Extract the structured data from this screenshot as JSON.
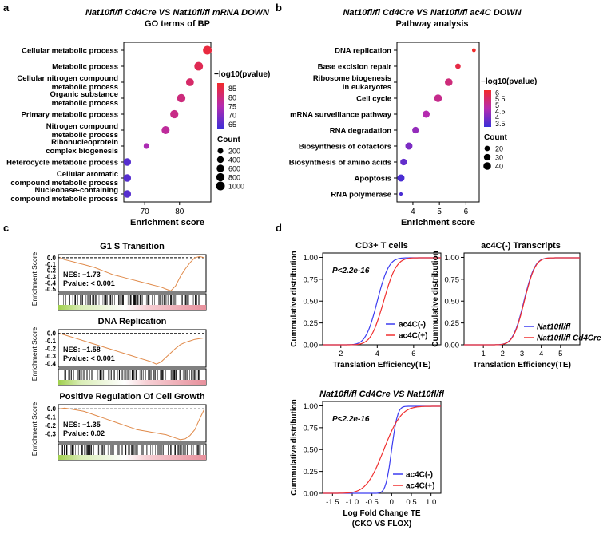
{
  "panels": {
    "a": {
      "letter": "a",
      "title_line1": "Nat10fl/fl Cd4Cre VS Nat10fl/fl mRNA DOWN",
      "title_line2": "GO terms of BP",
      "chart_data": {
        "type": "scatter",
        "title": "Nat10fl/fl Cd4Cre VS Nat10fl/fl mRNA DOWN - GO terms of BP",
        "xlabel": "Enrichment score",
        "xlim": [
          64,
          89
        ],
        "xticks": [
          70,
          80
        ],
        "terms": [
          {
            "label": [
              "Cellular metabolic process"
            ],
            "x": 88.0,
            "count": 1000,
            "logp": 86
          },
          {
            "label": [
              "Metabolic process"
            ],
            "x": 85.5,
            "count": 950,
            "logp": 84
          },
          {
            "label": [
              "Cellular nitrogen compound",
              "metabolic process"
            ],
            "x": 83.0,
            "count": 700,
            "logp": 82
          },
          {
            "label": [
              "Organic substance",
              "metabolic process"
            ],
            "x": 80.5,
            "count": 850,
            "logp": 80
          },
          {
            "label": [
              "Primary metabolic process"
            ],
            "x": 78.5,
            "count": 800,
            "logp": 79
          },
          {
            "label": [
              "Nitrogen compound",
              "metabolic process"
            ],
            "x": 76.0,
            "count": 750,
            "logp": 77
          },
          {
            "label": [
              "Ribonucleoprotein",
              "complex biogenesis"
            ],
            "x": 70.5,
            "count": 200,
            "logp": 74
          },
          {
            "label": [
              "Heterocycle metabolic process"
            ],
            "x": 65.0,
            "count": 600,
            "logp": 65
          },
          {
            "label": [
              "Cellular aromatic",
              "compound metabolic process"
            ],
            "x": 65.0,
            "count": 600,
            "logp": 65
          },
          {
            "label": [
              "Nucleobase-containing",
              "compound metabolic process"
            ],
            "x": 65.0,
            "count": 600,
            "logp": 65
          }
        ],
        "color_legend": {
          "title": "−log10(pvalue)",
          "min": 62,
          "max": 88,
          "ticks": [
            85,
            80,
            75,
            70,
            65
          ]
        },
        "size_legend": {
          "title": "Count",
          "values": [
            200,
            400,
            600,
            800,
            1000
          ]
        }
      }
    },
    "b": {
      "letter": "b",
      "title_line1": "Nat10fl/fl Cd4Cre VS Nat10fl/fl ac4C DOWN",
      "title_line2": "Pathway analysis",
      "chart_data": {
        "type": "scatter",
        "title": "Nat10fl/fl Cd4Cre VS Nat10fl/fl ac4C DOWN - Pathway analysis",
        "xlabel": "Enrichment score",
        "xlim": [
          3.4,
          6.5
        ],
        "xticks": [
          4,
          5,
          6
        ],
        "terms": [
          {
            "label": [
              "DNA replication"
            ],
            "x": 6.3,
            "count": 10,
            "logp": 6.2
          },
          {
            "label": [
              "Base excision repair"
            ],
            "x": 5.7,
            "count": 20,
            "logp": 5.9
          },
          {
            "label": [
              "Ribosome biogenesis",
              "in eukaryotes"
            ],
            "x": 5.35,
            "count": 40,
            "logp": 5.3
          },
          {
            "label": [
              "Cell cycle"
            ],
            "x": 4.95,
            "count": 40,
            "logp": 5.1
          },
          {
            "label": [
              "mRNA surveillance pathway"
            ],
            "x": 4.5,
            "count": 35,
            "logp": 4.7
          },
          {
            "label": [
              "RNA degradation"
            ],
            "x": 4.1,
            "count": 30,
            "logp": 4.3
          },
          {
            "label": [
              "Biosynthesis of cofactors"
            ],
            "x": 3.85,
            "count": 35,
            "logp": 4.0
          },
          {
            "label": [
              "Biosynthesis of amino acids"
            ],
            "x": 3.65,
            "count": 30,
            "logp": 3.7
          },
          {
            "label": [
              "Apoptosis"
            ],
            "x": 3.55,
            "count": 35,
            "logp": 3.4
          },
          {
            "label": [
              "RNA polymerase"
            ],
            "x": 3.55,
            "count": 8,
            "logp": 3.4
          }
        ],
        "color_legend": {
          "title": "−log10(pvalue)",
          "min": 3.2,
          "max": 6.2,
          "ticks": [
            6.0,
            5.5,
            5.0,
            4.5,
            4.0,
            3.5
          ]
        },
        "size_legend": {
          "title": "Count",
          "values": [
            20,
            30,
            40
          ]
        }
      }
    },
    "c": {
      "letter": "c",
      "chart_data": [
        {
          "type": "line",
          "title": "G1 S Transition",
          "ylabel": "Enrichment Score",
          "ylim": [
            -0.55,
            0.05
          ],
          "yticks": [
            "0.0",
            "-0.1",
            "-0.2",
            "-0.3",
            "-0.4",
            "-0.5"
          ],
          "nes": "NES: −1.73",
          "pvalue": "Pvalue: < 0.001",
          "curve": [
            0,
            -0.03,
            -0.05,
            -0.07,
            -0.09,
            -0.11,
            -0.13,
            -0.15,
            -0.18,
            -0.21,
            -0.24,
            -0.27,
            -0.29,
            -0.31,
            -0.33,
            -0.35,
            -0.37,
            -0.39,
            -0.41,
            -0.43,
            -0.45,
            -0.47,
            -0.5,
            -0.53,
            -0.45,
            -0.3,
            -0.18,
            -0.08,
            0,
            0.02,
            0
          ]
        },
        {
          "type": "line",
          "title": "DNA Replication",
          "ylabel": "Enrichment Score",
          "ylim": [
            -0.45,
            0.05
          ],
          "yticks": [
            "0.0",
            "-0.1",
            "-0.2",
            "-0.3",
            "-0.4"
          ],
          "nes": "NES: −1.58",
          "pvalue": "Pvalue: < 0.001",
          "curve": [
            0,
            -0.02,
            -0.04,
            -0.06,
            -0.08,
            -0.1,
            -0.12,
            -0.14,
            -0.16,
            -0.18,
            -0.2,
            -0.22,
            -0.24,
            -0.26,
            -0.28,
            -0.3,
            -0.32,
            -0.34,
            -0.36,
            -0.38,
            -0.41,
            -0.38,
            -0.32,
            -0.26,
            -0.2,
            -0.15,
            -0.12,
            -0.1,
            -0.08,
            -0.07,
            -0.06
          ]
        },
        {
          "type": "line",
          "title": "Positive Regulation Of Cell Growth",
          "ylabel": "Enrichment Score",
          "ylim": [
            -0.4,
            0.05
          ],
          "yticks": [
            "0.0",
            "-0.1",
            "-0.2",
            "-0.3"
          ],
          "nes": "NES: −1.35",
          "pvalue": "Pvalue: 0.02",
          "curve": [
            0,
            0.01,
            0,
            -0.01,
            -0.02,
            -0.03,
            -0.05,
            -0.07,
            -0.09,
            -0.11,
            -0.13,
            -0.15,
            -0.17,
            -0.19,
            -0.21,
            -0.23,
            -0.25,
            -0.26,
            -0.27,
            -0.28,
            -0.29,
            -0.3,
            -0.31,
            -0.33,
            -0.35,
            -0.37,
            -0.36,
            -0.32,
            -0.25,
            -0.12,
            0
          ]
        }
      ]
    },
    "d": {
      "letter": "d",
      "chart_data": [
        {
          "type": "line",
          "title": "CD3+ T cells",
          "annotation": "P<2.2e-16",
          "xlabel": "Translation Efficiency(TE)",
          "ylabel": "Cummulative distribution",
          "xlim": [
            1,
            7.5
          ],
          "xticks": [
            2,
            4,
            6
          ],
          "ylim": [
            0,
            1.05
          ],
          "yticks": [
            "0.00",
            "0.25",
            "0.50",
            "0.75",
            "1.00"
          ],
          "series": [
            {
              "name": "ac4C(-)",
              "color": "#3c3cf0",
              "mu": 4.0,
              "sigma": 0.5
            },
            {
              "name": "ac4C(+)",
              "color": "#f03030",
              "mu": 4.35,
              "sigma": 0.55
            }
          ]
        },
        {
          "type": "line",
          "title": "ac4C(-) Transcripts",
          "xlabel": "Translation Efficiency(TE)",
          "ylabel": "Cummulative distribution",
          "xlim": [
            0,
            6
          ],
          "xticks": [
            1,
            2,
            3,
            4,
            5
          ],
          "ylim": [
            0,
            1.05
          ],
          "yticks": [
            "0.00",
            "0.25",
            "0.50",
            "0.75",
            "1.00"
          ],
          "series": [
            {
              "name": "Nat10fl/fl",
              "color": "#3c3cf0",
              "mu": 3.1,
              "sigma": 0.45
            },
            {
              "name": "Nat10fl/fl Cd4Cre",
              "color": "#f03030",
              "mu": 3.12,
              "sigma": 0.45
            }
          ]
        },
        {
          "type": "line",
          "title": "Nat10fl/fl Cd4Cre VS Nat10fl/fl",
          "annotation": "P<2.2e-16",
          "xlabel": "Log Fold Change TE",
          "xlabel2": "(CKO VS FLOX)",
          "ylabel": "Cummulative distribution",
          "xlim": [
            -1.75,
            1.25
          ],
          "xticks": [
            "-1.5",
            "-1.0",
            "-0.5",
            "0",
            "0.5",
            "1.0"
          ],
          "ylim": [
            0,
            1.05
          ],
          "yticks": [
            "0.00",
            "0.25",
            "0.50",
            "0.75",
            "1.00"
          ],
          "series": [
            {
              "name": "ac4C(-)",
              "color": "#3c3cf0",
              "mu": 0.0,
              "sigma": 0.12
            },
            {
              "name": "ac4C(+)",
              "color": "#f03030",
              "mu": -0.2,
              "sigma": 0.35
            }
          ]
        }
      ]
    }
  }
}
